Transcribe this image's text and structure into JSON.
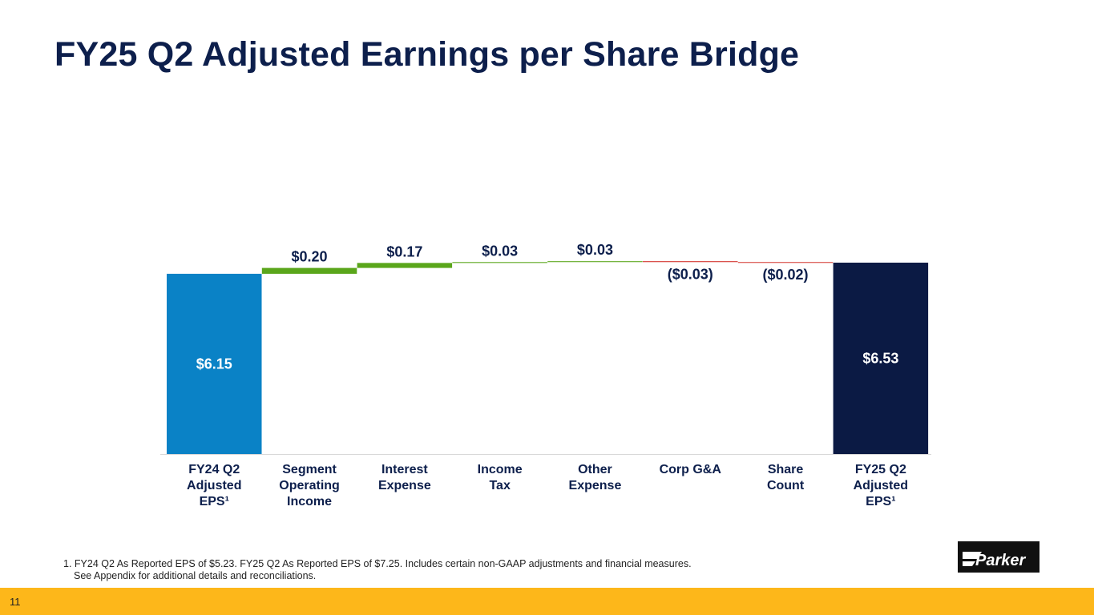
{
  "slide": {
    "title": "FY25 Q2 Adjusted Earnings per Share Bridge",
    "footnote_line1": "1. FY24 Q2 As Reported EPS of $5.23. FY25 Q2 As Reported EPS of $7.25. Includes certain non-GAAP adjustments and financial measures.",
    "footnote_line2": "See Appendix for additional details and reconciliations.",
    "page_number": "11",
    "logo_text": "Parker"
  },
  "colors": {
    "start": "#0a82c6",
    "end": "#0b1a44",
    "increase": "#5aa61b",
    "decrease": "#d2302a",
    "title": "#0d1f4c",
    "footer": "#fdb71a"
  },
  "chart_data": {
    "type": "waterfall",
    "title": "FY25 Q2 Adjusted Earnings per Share Bridge",
    "categories": [
      [
        "FY24 Q2",
        "Adjusted",
        "EPS¹"
      ],
      [
        "Segment",
        "Operating",
        "Income"
      ],
      [
        "Interest",
        "Expense"
      ],
      [
        "Income",
        "Tax"
      ],
      [
        "Other",
        "Expense"
      ],
      [
        "Corp G&A"
      ],
      [
        "Share",
        "Count"
      ],
      [
        "FY25 Q2",
        "Adjusted",
        "EPS¹"
      ]
    ],
    "values": [
      6.15,
      0.2,
      0.17,
      0.03,
      0.03,
      -0.03,
      -0.02,
      6.53
    ],
    "kinds": [
      "total",
      "delta",
      "delta",
      "delta",
      "delta",
      "delta",
      "delta",
      "total"
    ],
    "labels": [
      "$6.15",
      "$0.20",
      "$0.17",
      "$0.03",
      "$0.03",
      "($0.03)",
      "($0.02)",
      "$6.53"
    ],
    "ylim": [
      0,
      7.2
    ]
  }
}
